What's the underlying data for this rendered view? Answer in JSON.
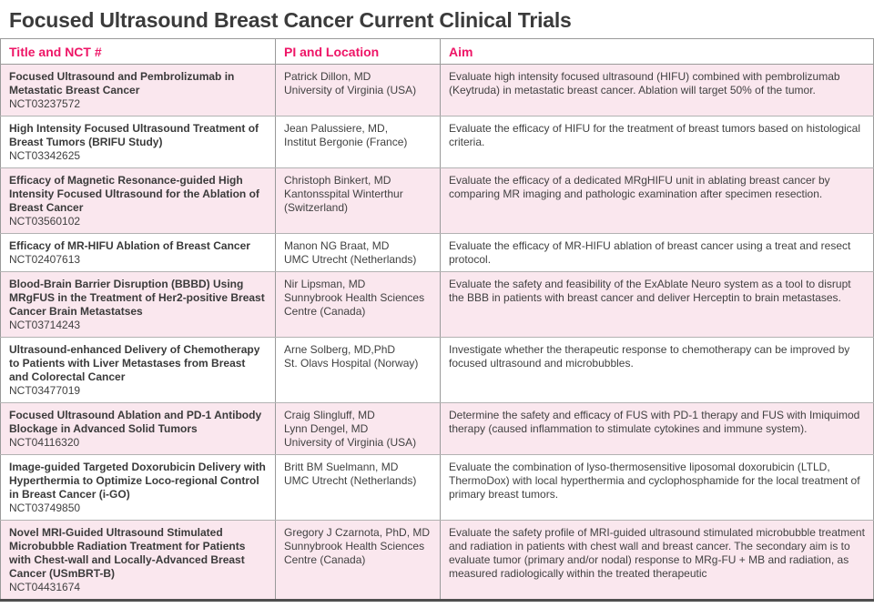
{
  "page_title": "Focused Ultrasound Breast Cancer Current Clinical Trials",
  "colors": {
    "header_text": "#ee1566",
    "row_pink": "#fae7ee",
    "row_white": "#ffffff",
    "title_text": "#3b3b3b",
    "body_text": "#414141",
    "cell_border": "#9a9a9a",
    "bottom_border": "#4e4e4e"
  },
  "table": {
    "columns": [
      "Title and NCT #",
      "PI and Location",
      "Aim"
    ],
    "rows": [
      {
        "title": "Focused Ultrasound and Pembrolizumab in Metastatic Breast Cancer",
        "nct": "NCT03237572",
        "pi": "Patrick Dillon, MD\nUniversity of Virginia (USA)",
        "aim": "Evaluate high intensity focused ultrasound (HIFU) combined with pembrolizumab (Keytruda) in metastatic breast cancer. Ablation will target 50% of the tumor."
      },
      {
        "title": "High Intensity Focused Ultrasound Treatment of Breast Tumors (BRIFU Study)",
        "nct": "NCT03342625",
        "pi": "Jean Palussiere, MD,\nInstitut Bergonie (France)",
        "aim": "Evaluate the efficacy of HIFU for the treatment of breast tumors based on histological criteria."
      },
      {
        "title": "Efficacy of Magnetic Resonance-guided High Intensity Focused Ultrasound for the Ablation of Breast Cancer",
        "nct": "NCT03560102",
        "pi": "Christoph Binkert, MD\nKantonsspital Winterthur\n(Switzerland)",
        "aim": "Evaluate the efficacy of a dedicated MRgHIFU unit in ablating breast cancer by comparing MR imaging and pathologic examination after specimen resection."
      },
      {
        "title": "Efficacy of MR-HIFU Ablation of Breast Cancer",
        "nct": "NCT02407613",
        "pi": "Manon NG Braat, MD\nUMC Utrecht (Netherlands)",
        "aim": "Evaluate the efficacy of MR-HIFU ablation of breast cancer using a treat and resect protocol."
      },
      {
        "title": "Blood-Brain Barrier Disruption (BBBD) Using MRgFUS in the Treatment of Her2-positive Breast Cancer Brain Metastatses",
        "nct": "NCT03714243",
        "pi": "Nir Lipsman, MD\nSunnybrook Health Sciences\nCentre (Canada)",
        "aim": "Evaluate the safety and feasibility of the ExAblate Neuro system as a tool to disrupt the BBB in patients with breast cancer and deliver Herceptin to brain metastases."
      },
      {
        "title": "Ultrasound-enhanced Delivery of Chemotherapy to Patients with Liver Metastases from Breast and Colorectal Cancer",
        "nct": "NCT03477019",
        "pi": "Arne Solberg, MD,PhD\nSt. Olavs Hospital (Norway)",
        "aim": "Investigate whether the therapeutic response to chemotherapy can be improved by focused ultrasound and microbubbles."
      },
      {
        "title": "Focused Ultrasound Ablation and PD-1 Antibody Blockage in Advanced Solid Tumors",
        "nct": "NCT04116320",
        "pi": "Craig Slingluff, MD\nLynn Dengel, MD\nUniversity of Virginia (USA)",
        "aim": "Determine the safety and efficacy of FUS with PD-1 therapy and FUS with Imiquimod therapy (caused inflammation to stimulate cytokines and immune system)."
      },
      {
        "title": "Image-guided Targeted Doxorubicin Delivery with Hyperthermia to Optimize Loco-regional Control in Breast Cancer (i-GO)",
        "nct": "NCT03749850",
        "pi": "Britt BM Suelmann, MD\nUMC Utrecht (Netherlands)",
        "aim": "Evaluate the combination of lyso-thermosensitive liposomal doxorubicin (LTLD, ThermoDox) with local hyperthermia and cyclophosphamide for the local treatment of primary breast tumors."
      },
      {
        "title": "Novel MRI-Guided Ultrasound Stimulated Microbubble Radiation Treatment for Patients with Chest-wall and Locally-Advanced Breast Cancer (USmBRT-B)",
        "nct": "NCT04431674",
        "pi": "Gregory J Czarnota, PhD, MD\nSunnybrook Health Sciences\nCentre (Canada)",
        "aim": "Evaluate the safety profile of MRI-guided ultrasound stimulated microbubble treatment and radiation in patients with chest wall and breast cancer. The secondary aim is to evaluate tumor (primary and/or nodal) response to MRg-FU + MB and radiation, as measured radiologically within the treated therapeutic"
      }
    ]
  }
}
